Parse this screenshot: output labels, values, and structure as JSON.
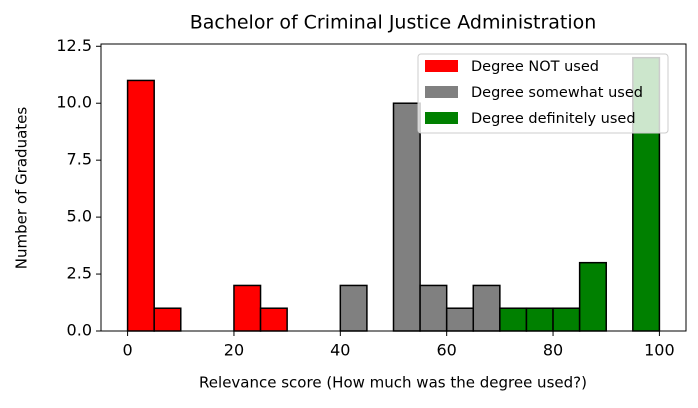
{
  "chart_data": {
    "type": "histogram",
    "title": "Bachelor of Criminal Justice Administration",
    "x_label": "Relevance score (How much was the degree used?)",
    "y_label": "Number of Graduates",
    "bins": [
      0,
      5,
      10,
      15,
      20,
      25,
      30,
      35,
      40,
      45,
      50,
      55,
      60,
      65,
      70,
      75,
      80,
      85,
      90,
      95,
      100
    ],
    "series": [
      {
        "name": "Degree NOT used",
        "color": "#ff0000",
        "values": [
          11,
          1,
          0,
          0,
          2,
          1,
          0,
          0,
          0,
          0,
          0,
          0,
          0,
          0,
          0,
          0,
          0,
          0,
          0,
          0
        ]
      },
      {
        "name": "Degree somewhat used",
        "color": "#808080",
        "values": [
          0,
          0,
          0,
          0,
          0,
          0,
          0,
          0,
          2,
          0,
          10,
          2,
          1,
          2,
          0,
          0,
          0,
          0,
          0,
          0
        ]
      },
      {
        "name": "Degree definitely used",
        "color": "#008000",
        "values": [
          0,
          0,
          0,
          0,
          0,
          0,
          0,
          0,
          0,
          0,
          0,
          0,
          0,
          0,
          1,
          1,
          1,
          3,
          0,
          12
        ]
      }
    ],
    "xlim": [
      -5,
      105
    ],
    "ylim": [
      0,
      12.6
    ],
    "xticks": [
      0,
      20,
      40,
      60,
      80,
      100
    ],
    "yticks": [
      {
        "value": 0,
        "label": "0.0"
      },
      2.5,
      {
        "value": 5,
        "label": "5.0"
      },
      7.5,
      {
        "value": 10,
        "label": "10.0"
      },
      12.5
    ],
    "legend": "upper right"
  }
}
